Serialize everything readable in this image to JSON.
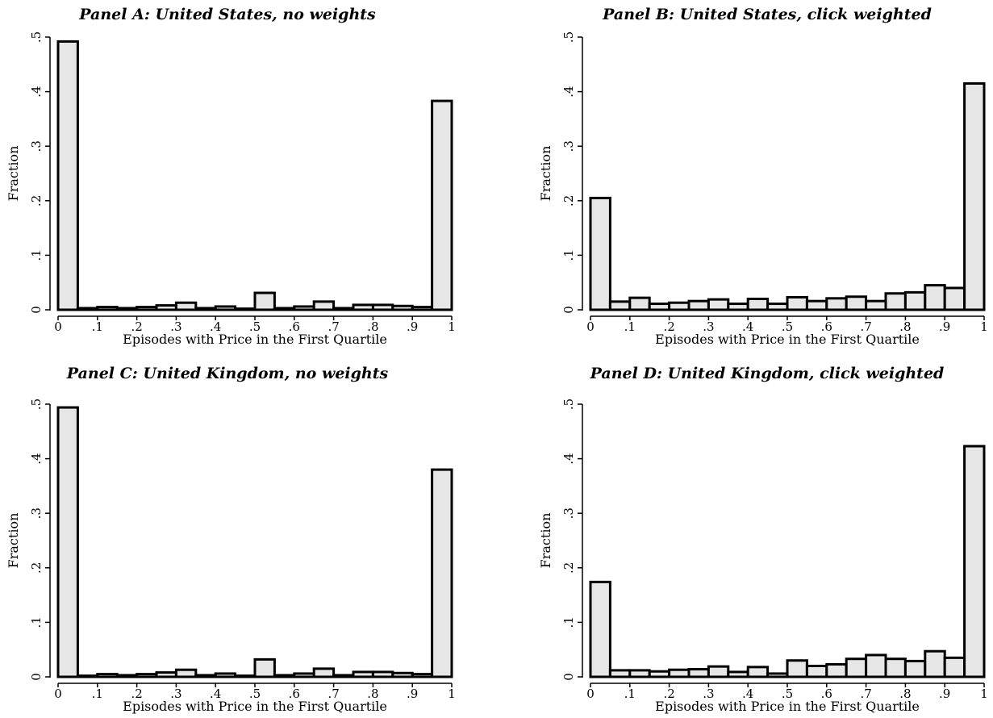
{
  "chart_data": [
    {
      "type": "bar",
      "title": "Panel A: United States, no weights",
      "xlabel": "Episodes with Price in the First Quartile",
      "ylabel": "Fraction",
      "xlim": [
        0,
        1
      ],
      "ylim": [
        0,
        0.5
      ],
      "xticks": [
        "0",
        ".1",
        ".2",
        ".3",
        ".4",
        ".5",
        ".6",
        ".7",
        ".8",
        ".9",
        "1"
      ],
      "yticks": [
        "0",
        ".1",
        ".2",
        ".3",
        ".4",
        ".5"
      ],
      "bin_width": 0.05,
      "bin_starts": [
        0,
        0.05,
        0.1,
        0.15,
        0.2,
        0.25,
        0.3,
        0.35,
        0.4,
        0.45,
        0.5,
        0.55,
        0.6,
        0.65,
        0.7,
        0.75,
        0.8,
        0.85,
        0.9,
        0.95
      ],
      "values": [
        0.492,
        0.003,
        0.005,
        0.003,
        0.005,
        0.008,
        0.013,
        0.003,
        0.006,
        0.002,
        0.031,
        0.003,
        0.006,
        0.015,
        0.003,
        0.009,
        0.009,
        0.007,
        0.005,
        0.383
      ],
      "grid": false
    },
    {
      "type": "bar",
      "title": "Panel B: United States, click weighted",
      "xlabel": "Episodes with Price in the First Quartile",
      "ylabel": "Fraction",
      "xlim": [
        0,
        1
      ],
      "ylim": [
        0,
        0.5
      ],
      "xticks": [
        "0",
        ".1",
        ".2",
        ".3",
        ".4",
        ".5",
        ".6",
        ".7",
        ".8",
        ".9",
        "1"
      ],
      "yticks": [
        "0",
        ".1",
        ".2",
        ".3",
        ".4",
        ".5"
      ],
      "bin_width": 0.05,
      "bin_starts": [
        0,
        0.05,
        0.1,
        0.15,
        0.2,
        0.25,
        0.3,
        0.35,
        0.4,
        0.45,
        0.5,
        0.55,
        0.6,
        0.65,
        0.7,
        0.75,
        0.8,
        0.85,
        0.9,
        0.95
      ],
      "values": [
        0.205,
        0.015,
        0.022,
        0.011,
        0.013,
        0.016,
        0.019,
        0.011,
        0.02,
        0.011,
        0.023,
        0.016,
        0.021,
        0.024,
        0.016,
        0.03,
        0.032,
        0.045,
        0.04,
        0.415
      ],
      "grid": false
    },
    {
      "type": "bar",
      "title": "Panel C: United Kingdom, no weights",
      "xlabel": "Episodes with Price in the First Quartile",
      "ylabel": "Fraction",
      "xlim": [
        0,
        1
      ],
      "ylim": [
        0,
        0.5
      ],
      "xticks": [
        "0",
        ".1",
        ".2",
        ".3",
        ".4",
        ".5",
        ".6",
        ".7",
        ".8",
        ".9",
        "1"
      ],
      "yticks": [
        "0",
        ".1",
        ".2",
        ".3",
        ".4",
        ".5"
      ],
      "bin_width": 0.05,
      "bin_starts": [
        0,
        0.05,
        0.1,
        0.15,
        0.2,
        0.25,
        0.3,
        0.35,
        0.4,
        0.45,
        0.5,
        0.55,
        0.6,
        0.65,
        0.7,
        0.75,
        0.8,
        0.85,
        0.9,
        0.95
      ],
      "values": [
        0.494,
        0.002,
        0.005,
        0.003,
        0.005,
        0.008,
        0.013,
        0.003,
        0.006,
        0.002,
        0.032,
        0.003,
        0.006,
        0.015,
        0.003,
        0.009,
        0.009,
        0.007,
        0.005,
        0.38
      ],
      "grid": false
    },
    {
      "type": "bar",
      "title": "Panel D: United Kingdom, click weighted",
      "xlabel": "Episodes with Price in the First Quartile",
      "ylabel": "Fraction",
      "xlim": [
        0,
        1
      ],
      "ylim": [
        0,
        0.5
      ],
      "xticks": [
        "0",
        ".1",
        ".2",
        ".3",
        ".4",
        ".5",
        ".6",
        ".7",
        ".8",
        ".9",
        "1"
      ],
      "yticks": [
        "0",
        ".1",
        ".2",
        ".3",
        ".4",
        ".5"
      ],
      "bin_width": 0.05,
      "bin_starts": [
        0,
        0.05,
        0.1,
        0.15,
        0.2,
        0.25,
        0.3,
        0.35,
        0.4,
        0.45,
        0.5,
        0.55,
        0.6,
        0.65,
        0.7,
        0.75,
        0.8,
        0.85,
        0.9,
        0.95
      ],
      "values": [
        0.174,
        0.012,
        0.012,
        0.01,
        0.013,
        0.014,
        0.019,
        0.009,
        0.018,
        0.006,
        0.03,
        0.02,
        0.023,
        0.033,
        0.04,
        0.033,
        0.029,
        0.047,
        0.035,
        0.423
      ],
      "grid": false
    }
  ],
  "colors": {
    "bar_fill": "#e6e6e6",
    "bar_stroke": "#000000",
    "axis": "#000000",
    "background": "#ffffff"
  }
}
